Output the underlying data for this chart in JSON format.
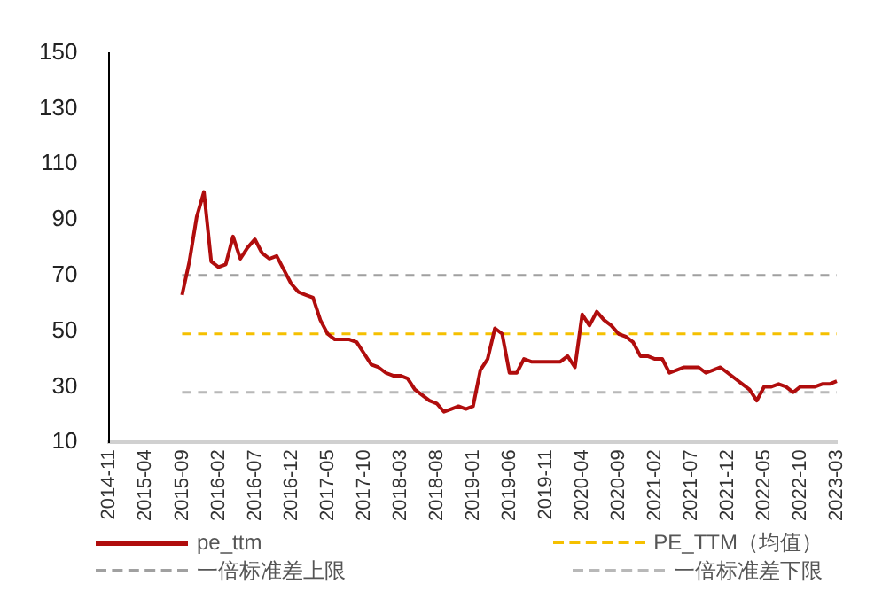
{
  "chart_data": {
    "type": "line",
    "categories": [
      "2014-11",
      null,
      null,
      null,
      null,
      "2015-04",
      null,
      null,
      null,
      null,
      "2015-09",
      null,
      null,
      null,
      null,
      "2016-02",
      null,
      null,
      null,
      null,
      "2016-07",
      null,
      null,
      null,
      null,
      "2016-12",
      null,
      null,
      null,
      null,
      "2017-05",
      null,
      null,
      null,
      null,
      "2017-10",
      null,
      null,
      null,
      null,
      "2018-03",
      null,
      null,
      null,
      null,
      "2018-08",
      null,
      null,
      null,
      null,
      "2019-01",
      null,
      null,
      null,
      null,
      "2019-06",
      null,
      null,
      null,
      null,
      "2019-11",
      null,
      null,
      null,
      null,
      "2020-04",
      null,
      null,
      null,
      null,
      "2020-09",
      null,
      null,
      null,
      null,
      "2021-02",
      null,
      null,
      null,
      null,
      "2021-07",
      null,
      null,
      null,
      null,
      "2021-12",
      null,
      null,
      null,
      null,
      "2022-05",
      null,
      null,
      null,
      null,
      "2022-10",
      null,
      null,
      null,
      null,
      "2023-03"
    ],
    "series": [
      {
        "name": "pe_ttm",
        "color": "#b00d0d",
        "line_style": "solid",
        "values": [
          null,
          null,
          null,
          null,
          null,
          null,
          null,
          null,
          null,
          null,
          63,
          75,
          91,
          100,
          75,
          73,
          74,
          84,
          76,
          80,
          83,
          78,
          76,
          77,
          72,
          67,
          64,
          63,
          62,
          54,
          49,
          47,
          47,
          47,
          46,
          42,
          38,
          37,
          35,
          34,
          34,
          33,
          29,
          27,
          25,
          24,
          21,
          22,
          23,
          22,
          23,
          36,
          40,
          51,
          49,
          35,
          35,
          40,
          39,
          39,
          39,
          39,
          39,
          41,
          37,
          56,
          52,
          57,
          54,
          52,
          49,
          48,
          46,
          41,
          41,
          40,
          40,
          35,
          36,
          37,
          37,
          37,
          35,
          36,
          37,
          35,
          33,
          31,
          29,
          25,
          30,
          30,
          31,
          30,
          28,
          30,
          30,
          30,
          31,
          31,
          32
        ]
      },
      {
        "name": "PE_TTM（均值）",
        "color": "#f5c000",
        "line_style": "dashed",
        "values": [
          null,
          null,
          null,
          null,
          null,
          null,
          null,
          null,
          null,
          null,
          49,
          49,
          49,
          49,
          49,
          49,
          49,
          49,
          49,
          49,
          49,
          49,
          49,
          49,
          49,
          49,
          49,
          49,
          49,
          49,
          49,
          49,
          49,
          49,
          49,
          49,
          49,
          49,
          49,
          49,
          49,
          49,
          49,
          49,
          49,
          49,
          49,
          49,
          49,
          49,
          49,
          49,
          49,
          49,
          49,
          49,
          49,
          49,
          49,
          49,
          49,
          49,
          49,
          49,
          49,
          49,
          49,
          49,
          49,
          49,
          49,
          49,
          49,
          49,
          49,
          49,
          49,
          49,
          49,
          49,
          49,
          49,
          49,
          49,
          49,
          49,
          49,
          49,
          49,
          49,
          49,
          49,
          49,
          49,
          49,
          49,
          49,
          49,
          49,
          49,
          49
        ]
      },
      {
        "name": "一倍标准差上限",
        "color": "#a0a0a0",
        "line_style": "dashed",
        "values": [
          null,
          null,
          null,
          null,
          null,
          null,
          null,
          null,
          null,
          null,
          70,
          70,
          70,
          70,
          70,
          70,
          70,
          70,
          70,
          70,
          70,
          70,
          70,
          70,
          70,
          70,
          70,
          70,
          70,
          70,
          70,
          70,
          70,
          70,
          70,
          70,
          70,
          70,
          70,
          70,
          70,
          70,
          70,
          70,
          70,
          70,
          70,
          70,
          70,
          70,
          70,
          70,
          70,
          70,
          70,
          70,
          70,
          70,
          70,
          70,
          70,
          70,
          70,
          70,
          70,
          70,
          70,
          70,
          70,
          70,
          70,
          70,
          70,
          70,
          70,
          70,
          70,
          70,
          70,
          70,
          70,
          70,
          70,
          70,
          70,
          70,
          70,
          70,
          70,
          70,
          70,
          70,
          70,
          70,
          70,
          70,
          70,
          70,
          70,
          70,
          70
        ]
      },
      {
        "name": "一倍标准差下限",
        "color": "#b8b8b8",
        "line_style": "dashed",
        "values": [
          null,
          null,
          null,
          null,
          null,
          null,
          null,
          null,
          null,
          null,
          28,
          28,
          28,
          28,
          28,
          28,
          28,
          28,
          28,
          28,
          28,
          28,
          28,
          28,
          28,
          28,
          28,
          28,
          28,
          28,
          28,
          28,
          28,
          28,
          28,
          28,
          28,
          28,
          28,
          28,
          28,
          28,
          28,
          28,
          28,
          28,
          28,
          28,
          28,
          28,
          28,
          28,
          28,
          28,
          28,
          28,
          28,
          28,
          28,
          28,
          28,
          28,
          28,
          28,
          28,
          28,
          28,
          28,
          28,
          28,
          28,
          28,
          28,
          28,
          28,
          28,
          28,
          28,
          28,
          28,
          28,
          28,
          28,
          28,
          28,
          28,
          28,
          28,
          28,
          28,
          28,
          28,
          28,
          28,
          28,
          28,
          28,
          28,
          28,
          28,
          28
        ]
      }
    ],
    "ylim": [
      10,
      150
    ],
    "yticks": [
      10,
      30,
      50,
      70,
      90,
      110,
      130,
      150
    ],
    "grid": false,
    "legend": "bottom",
    "marker": "none"
  }
}
